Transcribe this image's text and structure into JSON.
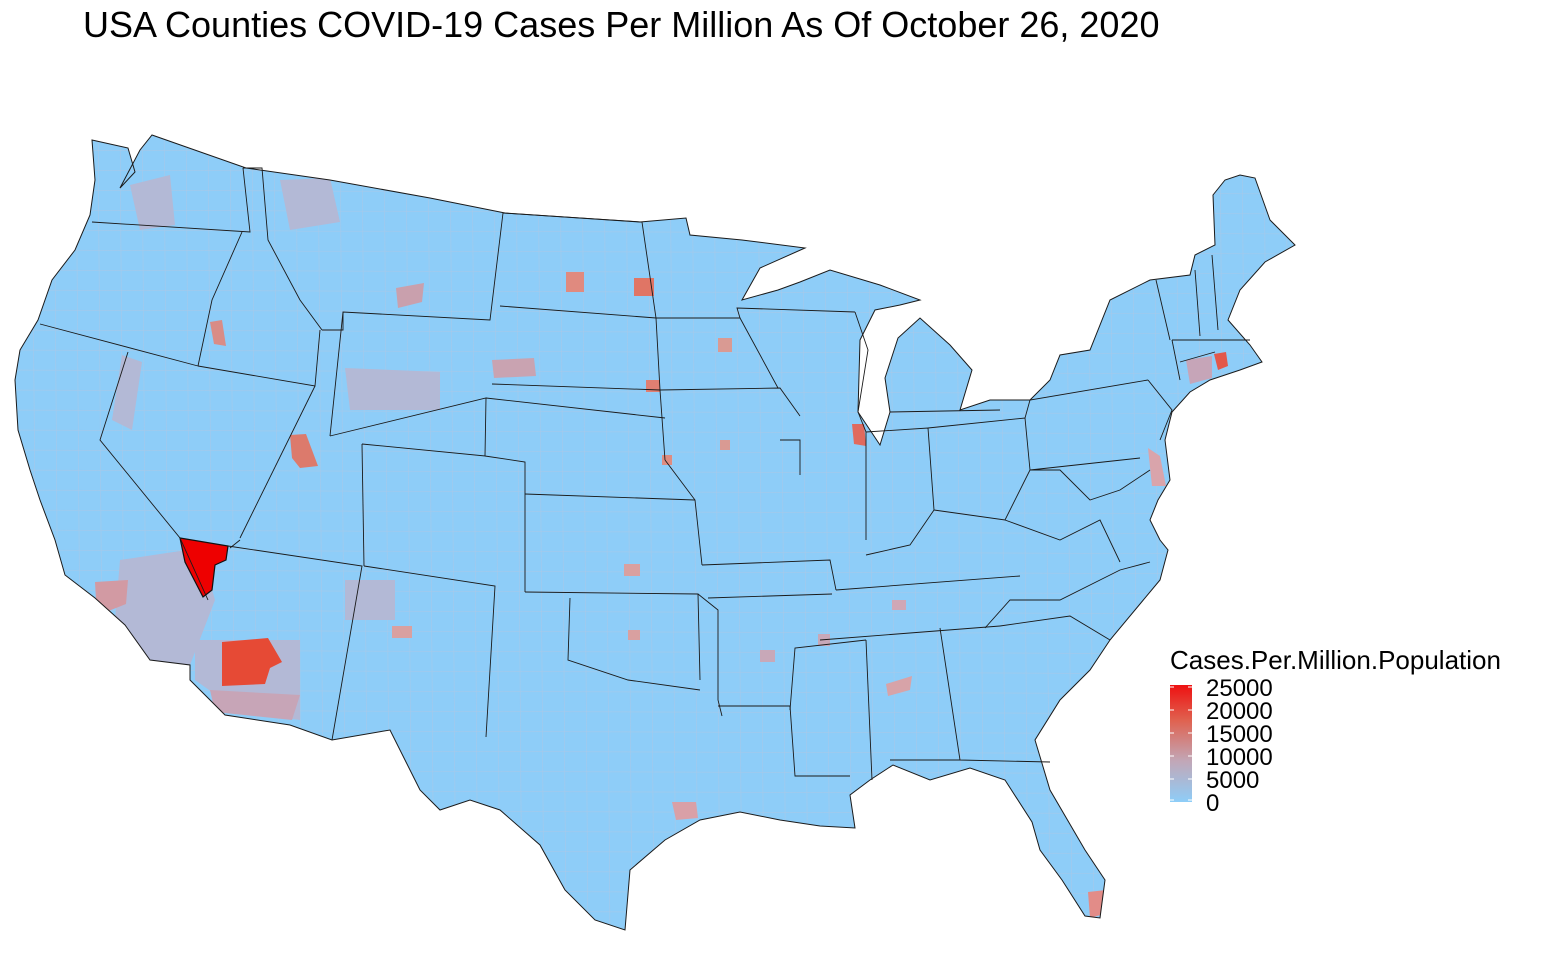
{
  "title": "USA Counties COVID-19 Cases Per Million As Of October 26, 2020",
  "legend": {
    "title": "Cases.Per.Million.Population",
    "labels": [
      "25000",
      "20000",
      "15000",
      "10000",
      "5000",
      "0"
    ],
    "colors": {
      "low": "#8ecdf8",
      "mid": "#c2a7b7",
      "high": "#ee1111"
    }
  },
  "colors": {
    "base": "#8ecdf8",
    "outline": "#1a1a1a",
    "county_lines": "#a8c8e6"
  },
  "map_data": {
    "type": "choropleth",
    "region": "Contiguous United States counties",
    "value_field": "Cases.Per.Million.Population",
    "scale_range": [
      0,
      25000
    ],
    "hotspots": [
      {
        "area": "Southern Nevada (Clark County)",
        "level": 25000
      },
      {
        "area": "Central Arizona (Maricopa County)",
        "level": 22000
      },
      {
        "area": "Southern Florida (Miami-Dade)",
        "level": 14000
      },
      {
        "area": "Rhode Island",
        "level": 18000
      },
      {
        "area": "Northeastern Illinois (Cook County)",
        "level": 17000
      },
      {
        "area": "Eastern North Dakota (Cass County)",
        "level": 15000
      },
      {
        "area": "Central Utah",
        "level": 16000
      },
      {
        "area": "Southern California (Los Angeles)",
        "level": 11000
      },
      {
        "area": "Delaware",
        "level": 12000
      },
      {
        "area": "Southeast Texas (Harris County)",
        "level": 10000
      },
      {
        "area": "Southern Arizona (Pima County)",
        "level": 8000
      }
    ]
  }
}
